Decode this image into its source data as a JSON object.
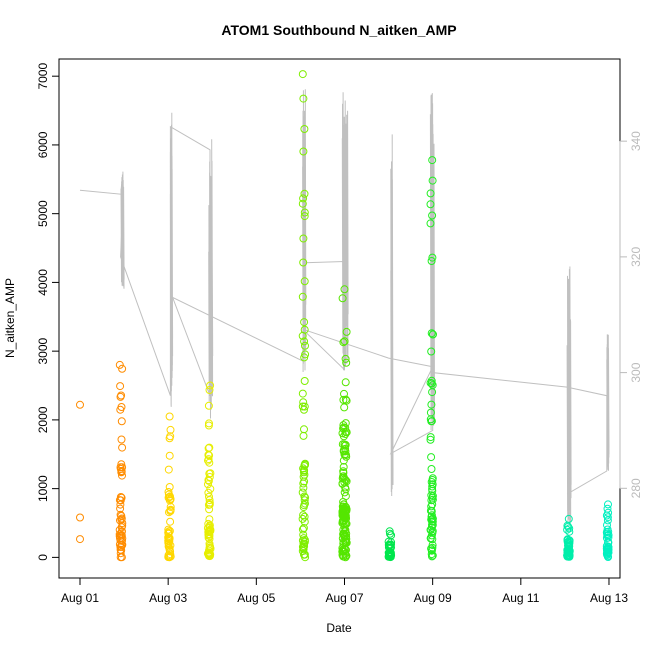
{
  "chart_data": {
    "type": "scatter",
    "title": "ATOM1 Southbound N_aitken_AMP",
    "xlabel": "Date",
    "ylabel": "N_aitken_AMP",
    "xlim": [
      0,
      12.25
    ],
    "ylim": [
      -300,
      7250
    ],
    "x_ticks": [
      {
        "value": 0,
        "label": "Aug 01"
      },
      {
        "value": 2,
        "label": "Aug 03"
      },
      {
        "value": 4,
        "label": "Aug 05"
      },
      {
        "value": 6,
        "label": "Aug 07"
      },
      {
        "value": 8,
        "label": "Aug 09"
      },
      {
        "value": 10,
        "label": "Aug 11"
      },
      {
        "value": 12,
        "label": "Aug 13"
      }
    ],
    "y_ticks": [
      0,
      1000,
      2000,
      3000,
      4000,
      5000,
      6000,
      7000
    ],
    "y2_ticks": [
      280,
      300,
      320,
      340
    ],
    "y2lim": [
      264.5,
      354.2
    ],
    "grey_line_color": "#c0c0c0",
    "bursts": [
      {
        "x": 0.0,
        "w": 0.0,
        "n": 3,
        "max": 2220,
        "color": "#ff8c00"
      },
      {
        "x": 0.9,
        "w": 0.06,
        "n": 55,
        "max": 2800,
        "color": "#ff8c00"
      },
      {
        "x": 2.0,
        "w": 0.06,
        "n": 50,
        "max": 2050,
        "color": "#ffd700"
      },
      {
        "x": 2.9,
        "w": 0.06,
        "n": 60,
        "max": 2500,
        "color": "#e6ee00"
      },
      {
        "x": 5.05,
        "w": 0.06,
        "n": 70,
        "max": 7030,
        "color": "#7fee00"
      },
      {
        "x": 5.95,
        "w": 0.1,
        "n": 140,
        "max": 3900,
        "color": "#55e600"
      },
      {
        "x": 7.0,
        "w": 0.06,
        "n": 40,
        "max": 380,
        "color": "#00e64d"
      },
      {
        "x": 7.95,
        "w": 0.06,
        "n": 70,
        "max": 5780,
        "color": "#22ee22"
      },
      {
        "x": 11.05,
        "w": 0.06,
        "n": 55,
        "max": 560,
        "color": "#00eeaa"
      },
      {
        "x": 11.95,
        "w": 0.04,
        "n": 40,
        "max": 770,
        "color": "#00f0c0"
      }
    ],
    "grey_series": [
      {
        "x": 0.0,
        "y2": 331.5
      },
      {
        "x": 0.98,
        "y2": 330.8
      },
      {
        "x": 0.92,
        "y2": 320
      },
      {
        "x": 2.05,
        "y2": 296
      },
      {
        "x": 2.05,
        "y2": 342.5
      },
      {
        "x": 2.95,
        "y2": 338.5
      },
      {
        "x": 2.95,
        "y2": 296
      },
      {
        "x": 2.1,
        "y2": 313
      },
      {
        "x": 5.05,
        "y2": 302
      },
      {
        "x": 5.1,
        "y2": 319
      },
      {
        "x": 6.0,
        "y2": 319.2
      },
      {
        "x": 6.0,
        "y2": 300.5
      },
      {
        "x": 5.05,
        "y2": 307.5
      },
      {
        "x": 7.0,
        "y2": 302.5
      },
      {
        "x": 8.0,
        "y2": 301
      },
      {
        "x": 7.05,
        "y2": 286
      },
      {
        "x": 8.0,
        "y2": 290
      },
      {
        "x": 8.0,
        "y2": 300
      },
      {
        "x": 11.05,
        "y2": 297.5
      },
      {
        "x": 11.95,
        "y2": 296
      },
      {
        "x": 11.95,
        "y2": 283
      },
      {
        "x": 11.05,
        "y2": 279
      }
    ],
    "grey_spikes": [
      {
        "x": 0.93,
        "w": 0.06,
        "lo": 314,
        "hi": 335
      },
      {
        "x": 2.05,
        "w": 0.04,
        "lo": 294,
        "hi": 345
      },
      {
        "x": 2.92,
        "w": 0.08,
        "lo": 292,
        "hi": 341
      },
      {
        "x": 5.05,
        "w": 0.06,
        "lo": 300,
        "hi": 350.5
      },
      {
        "x": 5.95,
        "w": 0.12,
        "lo": 300,
        "hi": 349
      },
      {
        "x": 7.05,
        "w": 0.04,
        "lo": 278,
        "hi": 342
      },
      {
        "x": 7.95,
        "w": 0.08,
        "lo": 290,
        "hi": 348.5
      },
      {
        "x": 11.05,
        "w": 0.08,
        "lo": 273,
        "hi": 320
      },
      {
        "x": 11.95,
        "w": 0.04,
        "lo": 283,
        "hi": 307
      }
    ]
  }
}
